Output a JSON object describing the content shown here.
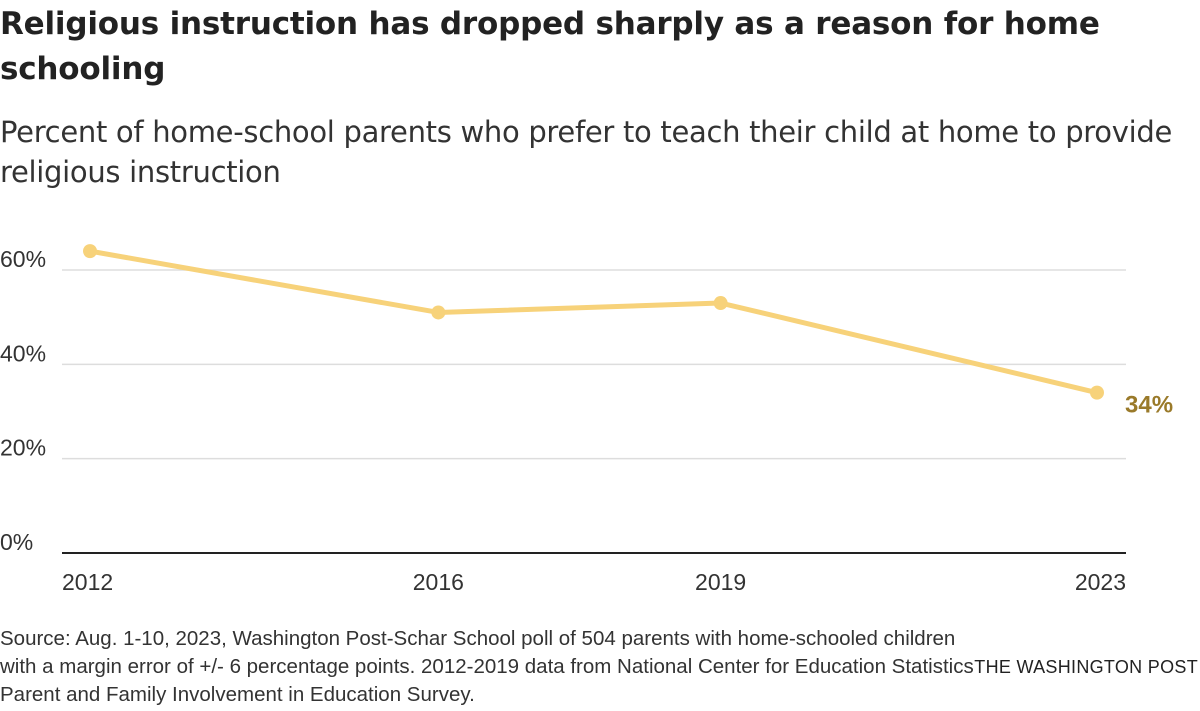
{
  "title": "Religious instruction has dropped sharply as a reason for home schooling",
  "subtitle": "Percent of home-school parents who prefer to teach their child at home to provide religious instruction",
  "source": "Source: Aug. 1-10, 2023, Washington Post-Schar School poll of 504 parents with home-schooled children with a margin error of +/- 6 percentage points. 2012-2019 data from National Center for Education Statistics Parent and Family Involvement in Education Survey.",
  "credit": "THE WASHINGTON POST",
  "colors": {
    "line": "#f7d27a",
    "end_label": "#9a7a2a",
    "grid": "#dddddd",
    "axis": "#222222"
  },
  "chart_data": {
    "type": "line",
    "title": "Religious instruction has dropped sharply as a reason for home schooling",
    "subtitle": "Percent of home-school parents who prefer to teach their child at home to provide religious instruction",
    "xlabel": "",
    "ylabel": "",
    "x": [
      2012,
      2016,
      2019,
      2023
    ],
    "x_tick_labels": [
      "2012",
      "2016",
      "2019",
      "2023"
    ],
    "series": [
      {
        "name": "Religious instruction",
        "values": [
          64,
          51,
          53,
          34
        ]
      }
    ],
    "xlim": [
      2012,
      2023
    ],
    "ylim": [
      0,
      60
    ],
    "y_ticks": [
      0,
      20,
      40,
      60
    ],
    "y_tick_labels": [
      "0%",
      "20%",
      "40%",
      "60%"
    ],
    "grid": true,
    "end_label": "34%"
  }
}
